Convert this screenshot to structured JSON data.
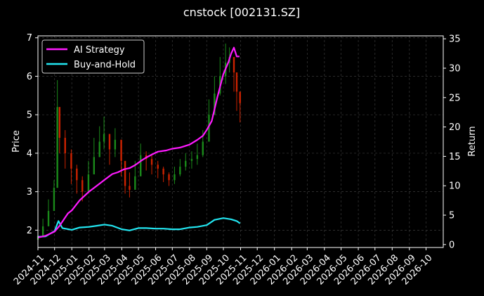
{
  "chart_data": {
    "type": "line",
    "title": "cnstock [002131.SZ]",
    "ylabel_left": "Price",
    "ylabel_right": "Return",
    "xlabel": "",
    "grid": true,
    "legend_position": "top-left",
    "x_range": [
      "2024-11-01",
      "2026-11-01"
    ],
    "y_left_range": [
      1.55,
      7.05
    ],
    "y_right_range": [
      -0.5,
      35.5
    ],
    "x_ticks": [
      "2024-11",
      "2024-12",
      "2025-01",
      "2025-02",
      "2025-03",
      "2025-04",
      "2025-05",
      "2025-06",
      "2025-07",
      "2025-08",
      "2025-09",
      "2025-10",
      "2025-11",
      "2025-12",
      "2026-01",
      "2026-02",
      "2026-03",
      "2026-04",
      "2026-05",
      "2026-06",
      "2026-07",
      "2026-08",
      "2026-09",
      "2026-10"
    ],
    "y_left_ticks": [
      2,
      3,
      4,
      5,
      6,
      7
    ],
    "y_right_ticks": [
      0,
      5,
      10,
      15,
      20,
      25,
      30,
      35
    ],
    "colors": {
      "up": "#1a8a1a",
      "down": "#cc2200",
      "ai": "#ff1aff",
      "bh": "#22e5f0",
      "background": "#000000"
    },
    "price_candles": {
      "axis": "left",
      "dates": [
        "2024-11-01",
        "2024-11-10",
        "2024-11-20",
        "2024-11-30",
        "2024-12-06",
        "2024-12-10",
        "2024-12-20",
        "2024-12-31",
        "2025-01-10",
        "2025-01-20",
        "2025-01-31",
        "2025-02-10",
        "2025-02-20",
        "2025-02-28",
        "2025-03-10",
        "2025-03-20",
        "2025-03-31",
        "2025-04-07",
        "2025-04-15",
        "2025-04-25",
        "2025-05-05",
        "2025-05-15",
        "2025-05-25",
        "2025-06-05",
        "2025-06-15",
        "2025-06-25",
        "2025-07-05",
        "2025-07-15",
        "2025-07-25",
        "2025-08-05",
        "2025-08-15",
        "2025-08-25",
        "2025-09-05",
        "2025-09-15",
        "2025-09-25",
        "2025-10-05",
        "2025-10-12",
        "2025-10-20",
        "2025-10-25",
        "2025-10-31"
      ],
      "close": [
        1.85,
        2.1,
        2.5,
        3.1,
        5.2,
        4.4,
        4.0,
        3.6,
        3.3,
        3.0,
        3.45,
        3.9,
        4.3,
        4.5,
        4.1,
        4.35,
        3.8,
        3.15,
        3.05,
        3.4,
        3.95,
        3.85,
        3.7,
        3.6,
        3.45,
        3.3,
        3.45,
        3.65,
        3.8,
        3.85,
        3.95,
        4.3,
        5.0,
        5.55,
        6.0,
        6.35,
        6.5,
        6.1,
        5.6,
        5.3
      ],
      "high": [
        1.95,
        2.3,
        2.8,
        3.3,
        5.9,
        5.2,
        4.6,
        4.1,
        3.7,
        3.4,
        3.8,
        4.4,
        4.7,
        4.95,
        4.5,
        4.65,
        4.3,
        3.6,
        3.5,
        3.8,
        4.25,
        4.05,
        3.95,
        3.8,
        3.65,
        3.5,
        3.65,
        3.85,
        4.0,
        4.05,
        4.25,
        4.6,
        5.4,
        6.0,
        6.5,
        6.85,
        6.75,
        6.4,
        6.0,
        5.6
      ],
      "low": [
        1.75,
        1.9,
        2.2,
        2.7,
        3.9,
        4.0,
        3.6,
        3.2,
        2.95,
        2.75,
        3.05,
        3.5,
        3.9,
        4.1,
        3.7,
        3.9,
        3.4,
        2.95,
        2.85,
        3.05,
        3.6,
        3.55,
        3.45,
        3.35,
        3.25,
        3.15,
        3.2,
        3.4,
        3.55,
        3.6,
        3.7,
        3.9,
        4.5,
        5.0,
        5.5,
        5.8,
        6.1,
        5.6,
        5.1,
        4.8
      ],
      "direction": [
        "up",
        "up",
        "up",
        "up",
        "up",
        "down",
        "down",
        "down",
        "down",
        "down",
        "up",
        "up",
        "up",
        "up",
        "down",
        "up",
        "down",
        "down",
        "down",
        "up",
        "up",
        "down",
        "down",
        "down",
        "down",
        "down",
        "up",
        "up",
        "up",
        "up",
        "up",
        "up",
        "up",
        "up",
        "up",
        "up",
        "up",
        "down",
        "down",
        "down"
      ]
    },
    "series": [
      {
        "name": "AI Strategy",
        "axis": "right",
        "x": [
          "2024-11-01",
          "2024-11-15",
          "2024-12-01",
          "2024-12-10",
          "2024-12-25",
          "2025-01-01",
          "2025-01-15",
          "2025-02-01",
          "2025-02-15",
          "2025-03-01",
          "2025-03-15",
          "2025-03-25",
          "2025-04-05",
          "2025-04-15",
          "2025-04-25",
          "2025-05-05",
          "2025-05-15",
          "2025-05-25",
          "2025-06-05",
          "2025-06-20",
          "2025-07-01",
          "2025-07-15",
          "2025-08-01",
          "2025-08-15",
          "2025-08-25",
          "2025-09-01",
          "2025-09-10",
          "2025-09-20",
          "2025-10-01",
          "2025-10-10",
          "2025-10-15",
          "2025-10-20",
          "2025-10-25",
          "2025-10-30"
        ],
        "values": [
          1.2,
          1.5,
          2.2,
          3.2,
          5.3,
          5.8,
          7.5,
          9.0,
          10.0,
          11.0,
          12.0,
          12.3,
          12.8,
          13.0,
          13.5,
          14.2,
          14.8,
          15.3,
          15.8,
          16.0,
          16.3,
          16.5,
          17.0,
          17.8,
          18.5,
          19.5,
          21.0,
          25.0,
          29.0,
          31.0,
          32.5,
          33.5,
          32.0,
          32.0
        ]
      },
      {
        "name": "Buy-and-Hold",
        "axis": "right",
        "x": [
          "2024-11-01",
          "2024-11-15",
          "2024-12-01",
          "2024-12-08",
          "2024-12-15",
          "2025-01-01",
          "2025-01-15",
          "2025-02-01",
          "2025-02-15",
          "2025-03-01",
          "2025-03-15",
          "2025-04-01",
          "2025-04-15",
          "2025-05-01",
          "2025-05-15",
          "2025-06-01",
          "2025-06-15",
          "2025-07-01",
          "2025-07-15",
          "2025-08-01",
          "2025-08-15",
          "2025-09-01",
          "2025-09-15",
          "2025-10-01",
          "2025-10-15",
          "2025-10-25",
          "2025-10-31"
        ],
        "values": [
          1.3,
          1.4,
          2.3,
          4.0,
          2.8,
          2.5,
          2.9,
          3.0,
          3.2,
          3.4,
          3.2,
          2.6,
          2.4,
          2.8,
          2.8,
          2.7,
          2.7,
          2.6,
          2.6,
          2.9,
          3.0,
          3.3,
          4.2,
          4.5,
          4.3,
          4.0,
          3.6
        ]
      }
    ]
  }
}
